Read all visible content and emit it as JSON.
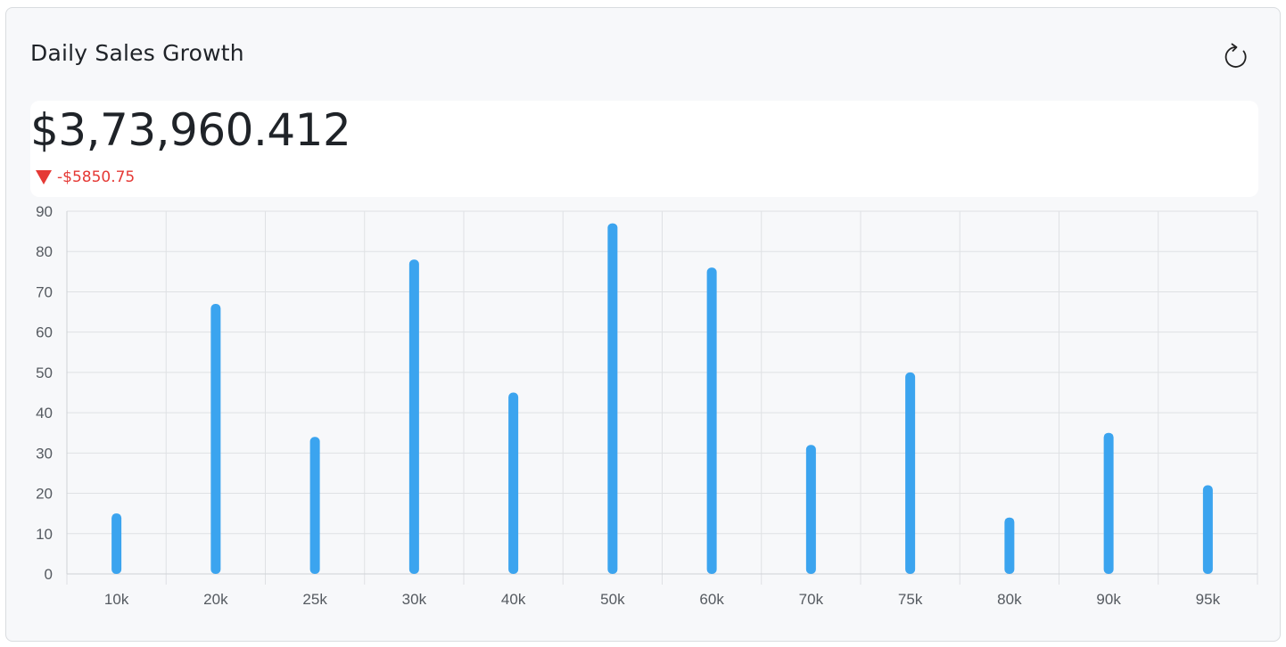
{
  "card": {
    "title": "Daily Sales Growth",
    "refresh_icon": "refresh-icon",
    "amount": "$3,73,960.412",
    "change": "-$5850.75",
    "change_icon": "triangle-down-icon",
    "change_color": "#e53935"
  },
  "chart_data": {
    "type": "bar",
    "categories": [
      "10k",
      "20k",
      "25k",
      "30k",
      "40k",
      "50k",
      "60k",
      "70k",
      "75k",
      "80k",
      "90k",
      "95k"
    ],
    "values": [
      15,
      67,
      34,
      78,
      45,
      87,
      76,
      32,
      50,
      14,
      35,
      22
    ],
    "ylim": [
      0,
      90
    ],
    "yticks": [
      0,
      10,
      20,
      30,
      40,
      50,
      60,
      70,
      80,
      90
    ],
    "grid": true,
    "bar_color": "#3ba4ef"
  }
}
